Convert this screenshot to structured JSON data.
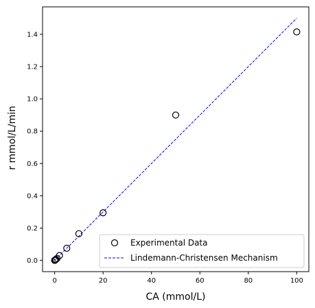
{
  "chart_data": {
    "type": "scatter",
    "title": "",
    "xlabel": "CA (mmol/L)",
    "ylabel": "r mmol/L/min",
    "xlim": [
      -5,
      105
    ],
    "ylim": [
      -0.07,
      1.57
    ],
    "xticks": [
      0,
      20,
      40,
      60,
      80,
      100
    ],
    "yticks": [
      0.0,
      0.2,
      0.4,
      0.6,
      0.8,
      1.0,
      1.2,
      1.4
    ],
    "grid": false,
    "legend_position": "lower-right",
    "series": [
      {
        "name": "Experimental Data",
        "kind": "scatter",
        "marker": "open-circle",
        "color": "#000000",
        "x": [
          0.02,
          0.05,
          0.1,
          0.2,
          0.5,
          1,
          2,
          5,
          10,
          20,
          50,
          100
        ],
        "y": [
          0.0,
          0.0,
          0.001,
          0.002,
          0.006,
          0.012,
          0.03,
          0.075,
          0.165,
          0.295,
          0.9,
          1.415
        ]
      },
      {
        "name": "Lindemann-Christensen Mechanism",
        "kind": "line",
        "style": "dashed",
        "color": "#0000ff",
        "x": [
          0,
          5,
          10,
          20,
          30,
          40,
          50,
          60,
          70,
          80,
          90,
          100
        ],
        "y": [
          0.0,
          0.075,
          0.15,
          0.3,
          0.45,
          0.6,
          0.75,
          0.9,
          1.05,
          1.2,
          1.35,
          1.5
        ]
      }
    ]
  }
}
